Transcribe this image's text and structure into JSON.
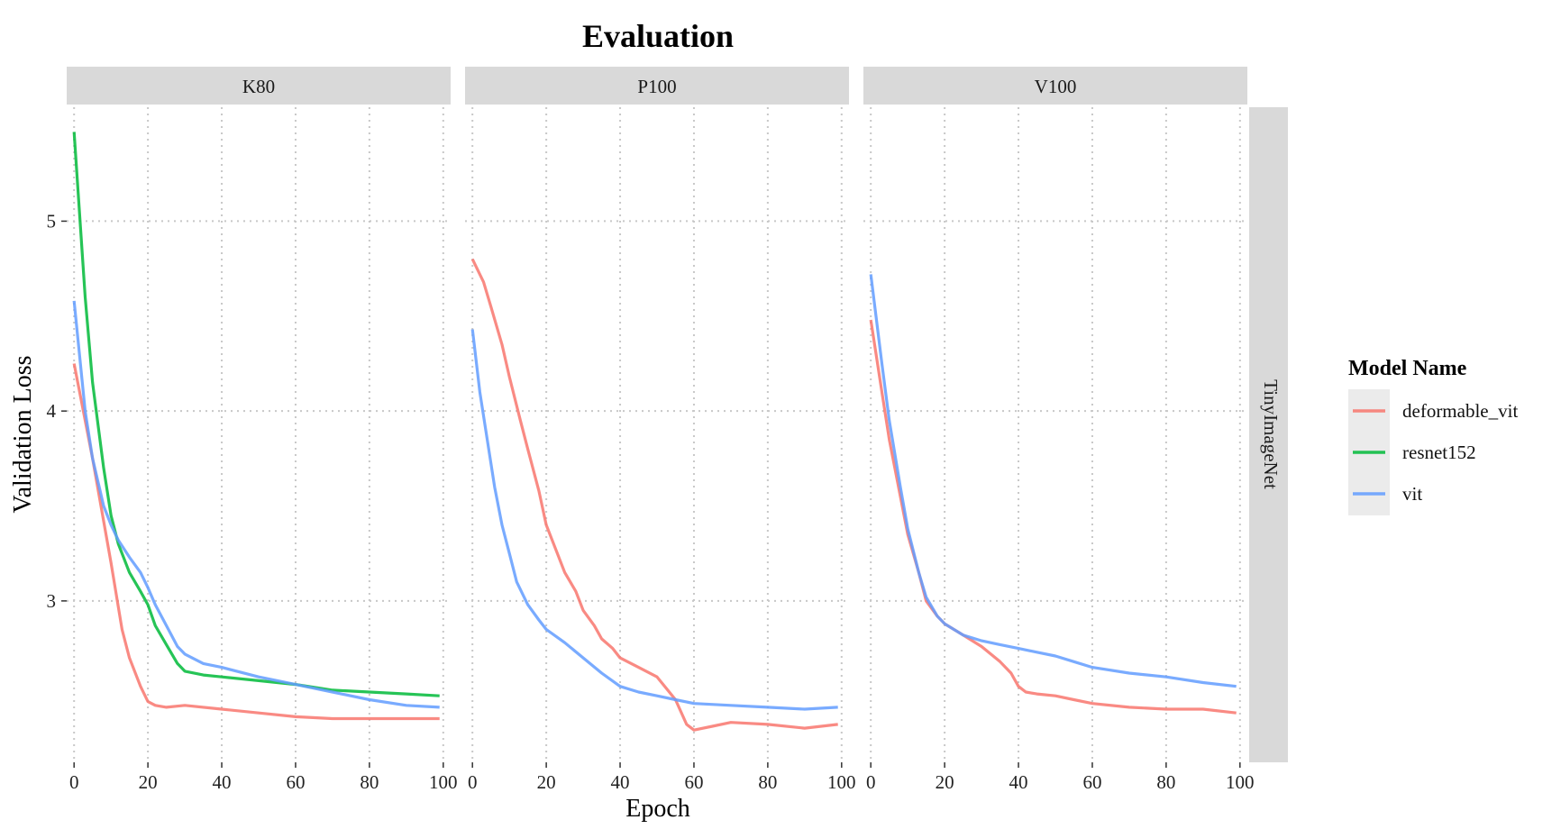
{
  "chart_data": {
    "type": "line",
    "title": "Evaluation",
    "xlabel": "Epoch",
    "ylabel": "Validation Loss",
    "xlim": [
      -2,
      102
    ],
    "ylim": [
      2.15,
      5.6
    ],
    "x_ticks": [
      0,
      20,
      40,
      60,
      80,
      100
    ],
    "y_ticks": [
      3,
      4,
      5
    ],
    "grid": "dotted",
    "row_facet": "TinyImageNet",
    "legend": {
      "title": "Model Name",
      "position": "right",
      "entries": [
        {
          "name": "deformable_vit",
          "color": "#F8766D"
        },
        {
          "name": "resnet152",
          "color": "#00BA38"
        },
        {
          "name": "vit",
          "color": "#619CFF"
        }
      ]
    },
    "panels": [
      {
        "name": "K80",
        "series": [
          {
            "name": "deformable_vit",
            "color": "#F8766D",
            "x": [
              0,
              5,
              10,
              13,
              15,
              18,
              20,
              22,
              25,
              30,
              40,
              50,
              60,
              70,
              80,
              90,
              99
            ],
            "y": [
              4.25,
              3.75,
              3.2,
              2.85,
              2.7,
              2.55,
              2.47,
              2.45,
              2.44,
              2.45,
              2.43,
              2.41,
              2.39,
              2.38,
              2.38,
              2.38,
              2.38
            ]
          },
          {
            "name": "resnet152",
            "color": "#00BA38",
            "x": [
              0,
              3,
              5,
              8,
              10,
              12,
              15,
              18,
              20,
              22,
              25,
              28,
              30,
              35,
              40,
              50,
              60,
              70,
              80,
              90,
              99
            ],
            "y": [
              5.47,
              4.6,
              4.15,
              3.7,
              3.45,
              3.3,
              3.15,
              3.05,
              2.98,
              2.87,
              2.77,
              2.67,
              2.63,
              2.61,
              2.6,
              2.58,
              2.56,
              2.53,
              2.52,
              2.51,
              2.5
            ]
          },
          {
            "name": "vit",
            "color": "#619CFF",
            "x": [
              0,
              3,
              5,
              8,
              10,
              12,
              15,
              18,
              20,
              22,
              25,
              28,
              30,
              35,
              40,
              50,
              60,
              70,
              80,
              90,
              99
            ],
            "y": [
              4.58,
              4.0,
              3.75,
              3.5,
              3.4,
              3.32,
              3.23,
              3.15,
              3.07,
              2.98,
              2.87,
              2.76,
              2.72,
              2.67,
              2.65,
              2.6,
              2.56,
              2.52,
              2.48,
              2.45,
              2.44
            ]
          }
        ]
      },
      {
        "name": "P100",
        "series": [
          {
            "name": "deformable_vit",
            "color": "#F8766D",
            "x": [
              0,
              3,
              5,
              8,
              10,
              13,
              15,
              18,
              20,
              23,
              25,
              28,
              30,
              33,
              35,
              38,
              40,
              45,
              50,
              55,
              58,
              60,
              65,
              70,
              80,
              90,
              99
            ],
            "y": [
              4.8,
              4.68,
              4.55,
              4.35,
              4.18,
              3.95,
              3.8,
              3.58,
              3.4,
              3.25,
              3.15,
              3.05,
              2.95,
              2.87,
              2.8,
              2.75,
              2.7,
              2.65,
              2.6,
              2.48,
              2.35,
              2.32,
              2.34,
              2.36,
              2.35,
              2.33,
              2.35
            ]
          },
          {
            "name": "vit",
            "color": "#619CFF",
            "x": [
              0,
              2,
              4,
              6,
              8,
              10,
              12,
              15,
              18,
              20,
              25,
              30,
              35,
              40,
              45,
              50,
              55,
              60,
              70,
              80,
              90,
              99
            ],
            "y": [
              4.43,
              4.1,
              3.85,
              3.6,
              3.4,
              3.25,
              3.1,
              2.98,
              2.9,
              2.85,
              2.78,
              2.7,
              2.62,
              2.55,
              2.52,
              2.5,
              2.48,
              2.46,
              2.45,
              2.44,
              2.43,
              2.44
            ]
          }
        ]
      },
      {
        "name": "V100",
        "series": [
          {
            "name": "deformable_vit",
            "color": "#F8766D",
            "x": [
              0,
              3,
              5,
              8,
              10,
              13,
              15,
              18,
              20,
              25,
              30,
              35,
              38,
              40,
              42,
              45,
              50,
              55,
              60,
              70,
              80,
              90,
              99
            ],
            "y": [
              4.48,
              4.1,
              3.85,
              3.55,
              3.35,
              3.15,
              3.0,
              2.92,
              2.88,
              2.82,
              2.76,
              2.68,
              2.62,
              2.55,
              2.52,
              2.51,
              2.5,
              2.48,
              2.46,
              2.44,
              2.43,
              2.43,
              2.41
            ]
          },
          {
            "name": "vit",
            "color": "#619CFF",
            "x": [
              0,
              3,
              5,
              8,
              10,
              13,
              15,
              18,
              20,
              25,
              30,
              35,
              40,
              45,
              50,
              55,
              60,
              70,
              80,
              90,
              99
            ],
            "y": [
              4.72,
              4.25,
              3.95,
              3.6,
              3.38,
              3.15,
              3.02,
              2.92,
              2.88,
              2.82,
              2.79,
              2.77,
              2.75,
              2.73,
              2.71,
              2.68,
              2.65,
              2.62,
              2.6,
              2.57,
              2.55
            ]
          }
        ]
      }
    ]
  }
}
